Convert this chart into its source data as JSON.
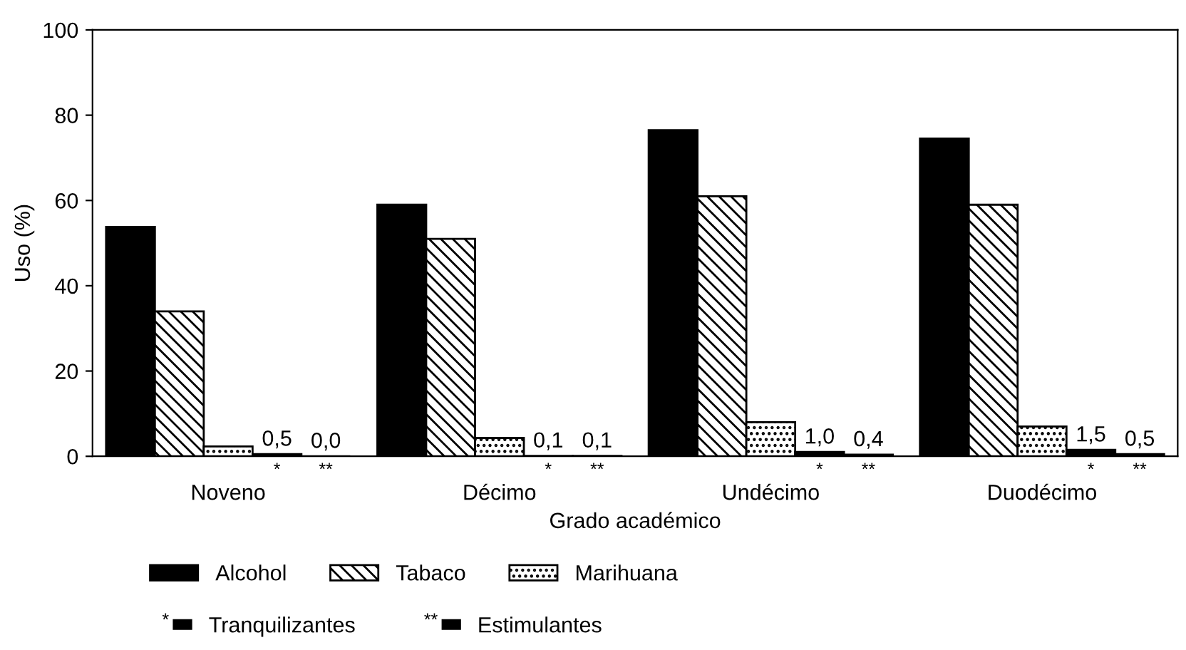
{
  "chart_data": {
    "type": "bar",
    "xlabel": "Grado académico",
    "ylabel": "Uso (%)",
    "categories": [
      "Noveno",
      "Décimo",
      "Undécimo",
      "Duodécimo"
    ],
    "series": [
      {
        "name": "Alcohol",
        "color": "#000000",
        "values": [
          53.8,
          59,
          76.5,
          74.5
        ]
      },
      {
        "name": "Tabaco",
        "color": "#000000",
        "values": [
          34,
          51,
          61,
          59
        ]
      },
      {
        "name": "Marihuana",
        "color": "#000000",
        "values": [
          2.3,
          4.3,
          8,
          7
        ]
      },
      {
        "name": "Tranquilizantes",
        "color": "#000000",
        "values": [
          0.5,
          0.1,
          1.0,
          1.5
        ],
        "value_labels": [
          "0,5",
          "0,1",
          "1,0",
          "1,5"
        ]
      },
      {
        "name": "Estimulantes",
        "color": "#000000",
        "values": [
          0.0,
          0.1,
          0.4,
          0.5
        ],
        "value_labels": [
          "0,0",
          "0,1",
          "0,4",
          "0,5"
        ]
      }
    ],
    "annotations": [
      "*",
      "**",
      "*",
      "**",
      "*",
      "**",
      "*",
      "**"
    ],
    "ylim": [
      0,
      100
    ],
    "yticks": [
      0,
      20,
      40,
      60,
      80,
      100
    ],
    "grid": false,
    "legend": "bottom"
  }
}
